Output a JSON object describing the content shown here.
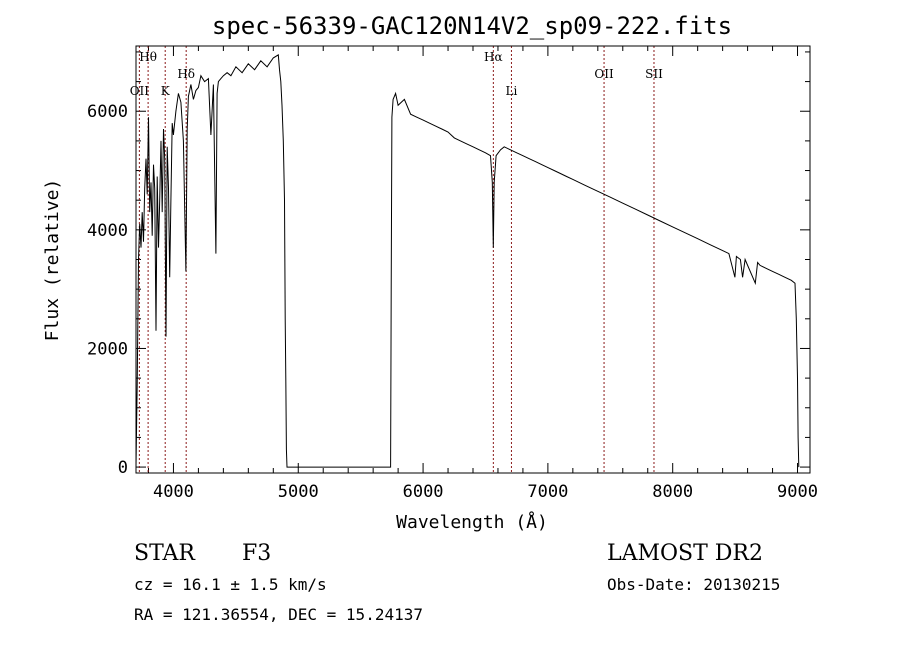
{
  "chart_data": {
    "type": "line",
    "title": "spec-56339-GAC120N14V2_sp09-222.fits",
    "xlabel": "Wavelength (Å)",
    "ylabel": "Flux (relative)",
    "xlim": [
      3700,
      9100
    ],
    "ylim": [
      -100,
      7100
    ],
    "x_ticks": [
      4000,
      5000,
      6000,
      7000,
      8000,
      9000
    ],
    "x_tick_labels": [
      "4000",
      "5000",
      "6000",
      "7000",
      "8000",
      "9000"
    ],
    "y_ticks": [
      0,
      2000,
      4000,
      6000
    ],
    "y_tick_labels": [
      "0",
      "2000",
      "4000",
      "6000"
    ],
    "grid": false,
    "series": [
      {
        "color": "#000000",
        "x": [
          3700,
          3710,
          3720,
          3730,
          3740,
          3750,
          3760,
          3770,
          3780,
          3790,
          3800,
          3810,
          3820,
          3830,
          3840,
          3850,
          3860,
          3870,
          3880,
          3890,
          3900,
          3910,
          3920,
          3930,
          3940,
          3950,
          3960,
          3970,
          3980,
          3990,
          4000,
          4020,
          4040,
          4060,
          4080,
          4100,
          4110,
          4120,
          4140,
          4160,
          4180,
          4200,
          4220,
          4250,
          4280,
          4300,
          4320,
          4340,
          4350,
          4360,
          4380,
          4400,
          4430,
          4460,
          4500,
          4550,
          4600,
          4650,
          4700,
          4750,
          4800,
          4840,
          4850,
          4860,
          4870,
          4880,
          4890,
          4895,
          4900,
          4905,
          4910,
          5000,
          5200,
          5400,
          5600,
          5740,
          5745,
          5750,
          5760,
          5780,
          5800,
          5850,
          5900,
          5950,
          6000,
          6050,
          6100,
          6150,
          6200,
          6250,
          6300,
          6350,
          6400,
          6450,
          6500,
          6540,
          6555,
          6563,
          6570,
          6585,
          6620,
          6650,
          6700,
          6750,
          6800,
          6850,
          6900,
          6950,
          7000,
          7050,
          7100,
          7150,
          7200,
          7300,
          7400,
          7500,
          7600,
          7700,
          7800,
          7900,
          8000,
          8100,
          8200,
          8300,
          8400,
          8450,
          8498,
          8510,
          8542,
          8560,
          8580,
          8662,
          8680,
          8700,
          8750,
          8800,
          8850,
          8900,
          8950,
          8980,
          8990,
          9000,
          9005,
          9010
        ],
        "values": [
          0,
          1400,
          3500,
          4100,
          3700,
          4300,
          3800,
          4700,
          5200,
          4600,
          5900,
          4300,
          4800,
          3900,
          5100,
          4700,
          2300,
          4900,
          3700,
          4500,
          5500,
          4300,
          5700,
          5200,
          2200,
          5400,
          4700,
          3200,
          4500,
          5800,
          5600,
          6000,
          6300,
          6150,
          5500,
          3300,
          5700,
          6250,
          6450,
          6200,
          6350,
          6400,
          6600,
          6500,
          6550,
          5600,
          6450,
          3600,
          6300,
          6500,
          6550,
          6600,
          6650,
          6600,
          6750,
          6650,
          6800,
          6700,
          6850,
          6750,
          6900,
          6950,
          6700,
          6500,
          6100,
          5500,
          4500,
          2500,
          1500,
          300,
          0,
          0,
          0,
          0,
          0,
          0,
          3000,
          5900,
          6200,
          6300,
          6100,
          6200,
          5950,
          5900,
          5850,
          5800,
          5750,
          5700,
          5650,
          5550,
          5500,
          5450,
          5400,
          5350,
          5300,
          5250,
          4800,
          3700,
          4800,
          5250,
          5350,
          5400,
          5350,
          5300,
          5250,
          5200,
          5150,
          5100,
          5050,
          5000,
          4950,
          4900,
          4850,
          4750,
          4650,
          4550,
          4450,
          4350,
          4250,
          4150,
          4050,
          3950,
          3850,
          3750,
          3650,
          3600,
          3200,
          3550,
          3500,
          3200,
          3500,
          3100,
          3450,
          3400,
          3350,
          3300,
          3250,
          3200,
          3150,
          3100,
          2500,
          1500,
          500,
          0
        ]
      }
    ],
    "line_markers": [
      {
        "label": "Hθ",
        "x": 3797,
        "level": "top"
      },
      {
        "label": "OII",
        "x": 3727,
        "level": "mid"
      },
      {
        "label": "K",
        "x": 3934,
        "level": "mid"
      },
      {
        "label": "Hδ",
        "x": 4102,
        "level": "top2"
      },
      {
        "label": "Hα",
        "x": 6563,
        "level": "top"
      },
      {
        "label": "Li",
        "x": 6708,
        "level": "mid"
      },
      {
        "label": "OII",
        "x": 7450,
        "level": "top2"
      },
      {
        "label": "SII",
        "x": 7850,
        "level": "top2"
      }
    ],
    "marker_color": "#8b1a1a"
  },
  "info": {
    "object_class": "STAR",
    "subclass": "F3",
    "survey": "LAMOST DR2",
    "cz": "cz = 16.1 ± 1.5 km/s",
    "obs_date": "Obs-Date: 20130215",
    "coords": "RA = 121.36554, DEC =  15.24137"
  }
}
